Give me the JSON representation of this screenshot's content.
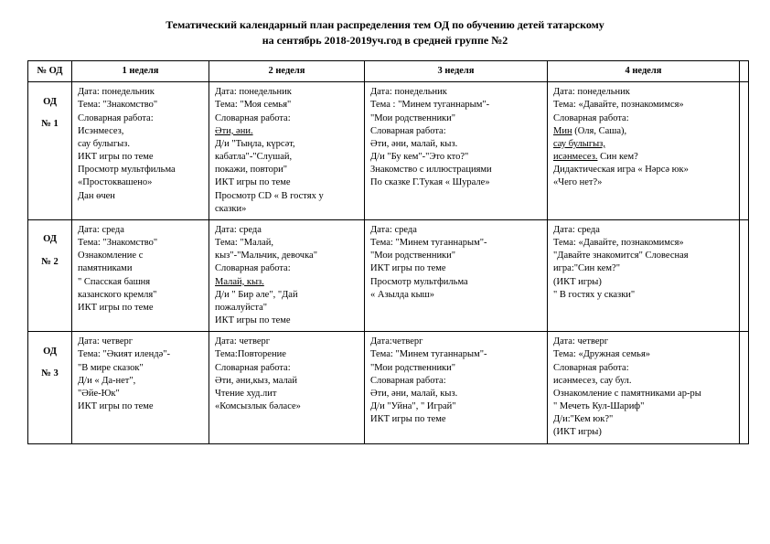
{
  "title": "Тематический календарный план распределения тем ОД по обучению детей татарскому",
  "subtitle": "на сентябрь 2018-2019уч.год в средней группе №2",
  "headers": {
    "od": "№ ОД",
    "w1": "1 неделя",
    "w2": "2 неделя",
    "w3": "3 неделя",
    "w4": "4 неделя"
  },
  "rows": [
    {
      "od_line1": "ОД",
      "od_line2": "№ 1",
      "w1": "Дата: понедельник\nТема: \"Знакомство\"\nСловарная работа:\nИсэнмесез,\nсау булыгыз.\nИКТ игры по теме\nПросмотр мультфильма\n«Простоквашено»\nДан өчен",
      "w2_pre": "Дата: понедельник\nТема: \"Моя семья\"\nСловарная работа:",
      "w2_u": "Әти, әни.",
      "w2_post": "Д/и \"Тыңла, күрсәт,\nкабатла\"-\"Слушай,\nпокажи, повтори\"\nИКТ игры по теме\nПросмотр CD « В гостях у\nсказки»",
      "w3": "Дата: понедельник\nТема : \"Минем туганнарым\"-\n\"Мои родственники\"\nСловарная работа:\nӘти, әни, малай, кыз.\nД/и \"Бу кем\"-\"Это кто?\"\nЗнакомство с иллюстрациями\nПо сказке Г.Тукая « Шурале»",
      "w4_l1": "Дата:  понедельник",
      "w4_l2": "Тема: «Давайте, познакомимся»",
      "w4_l3": " Словарная работа:",
      "w4_l4a": "Мин",
      "w4_l4b": " (Оля, Саша),",
      "w4_l5a": "сау булыгыз,",
      "w4_l6a": " исәнмесез.",
      "w4_l6b": " Син кем?",
      "w4_l7": " Дидактическая игра « Нәрсә юк»",
      "w4_l8": "«Чего нет?»"
    },
    {
      "od_line1": "ОД",
      "od_line2": "№ 2",
      "w1": "Дата: среда\nТема: \"Знакомство\"\nОзнакомление с\nпамятниками\n\" Спасская башня\nказанского кремля\"\nИКТ игры по теме",
      "w2_pre": "Дата: среда\nТема: \"Малай,\nкыз\"-\"Мальчик, девочка\"\nСловарная работа:",
      "w2_u": "Малай, кыз.",
      "w2_post": "Д/и \" Бир әле\", \"Дай\nпожалуйста\"\nИКТ игры по теме",
      "w3": "Дата: среда\nТема: \"Минем туганнарым\"-\n\"Мои родственники\"\nИКТ игры по теме\nПросмотр мультфильма\n« Азылда кыш»",
      "w4_plain": "Дата:  среда\nТема: «Давайте, познакомимся»\n\"Давайте знакомится\" Словесная\nигра:\"Син кем?\"\n(ИКТ игры)\n\" В гостях у сказки\""
    },
    {
      "od_line1": "ОД",
      "od_line2": "№ 3",
      "w1": "Дата:  четверг\nТема: \"Әкият илендә\"-\n\"В мире сказок\"\nД/и « Да-нет\",\n\"Әйе-Юк\"\n ИКТ игры по теме",
      "w2_pre": "Дата:  четверг\nТема:Повторение\nСловарная работа:\nӘти, әни,кыз, малай\nЧтение худ.лит\n«Комсызлык бәласе»",
      "w2_u": "",
      "w2_post": "",
      "w3": "Дата:четверг\nТема: \"Минем туганнарым\"-\n\"Мои родственники\"\nСловарная работа:\nӘти, әни, малай, кыз.\nД/и \"Уйна\", \" Играй\"\nИКТ игры по теме",
      "w4_plain": "Дата:  четверг\nТема: «Дружная семья»\n Словарная работа:\nисәнмесез,  сау бул.\nОзнакомление с памятниками ар-ры\n\" Мечеть Кул-Шариф\"\nД/и:\"Кем юк?\"\n(ИКТ игры)"
    }
  ]
}
